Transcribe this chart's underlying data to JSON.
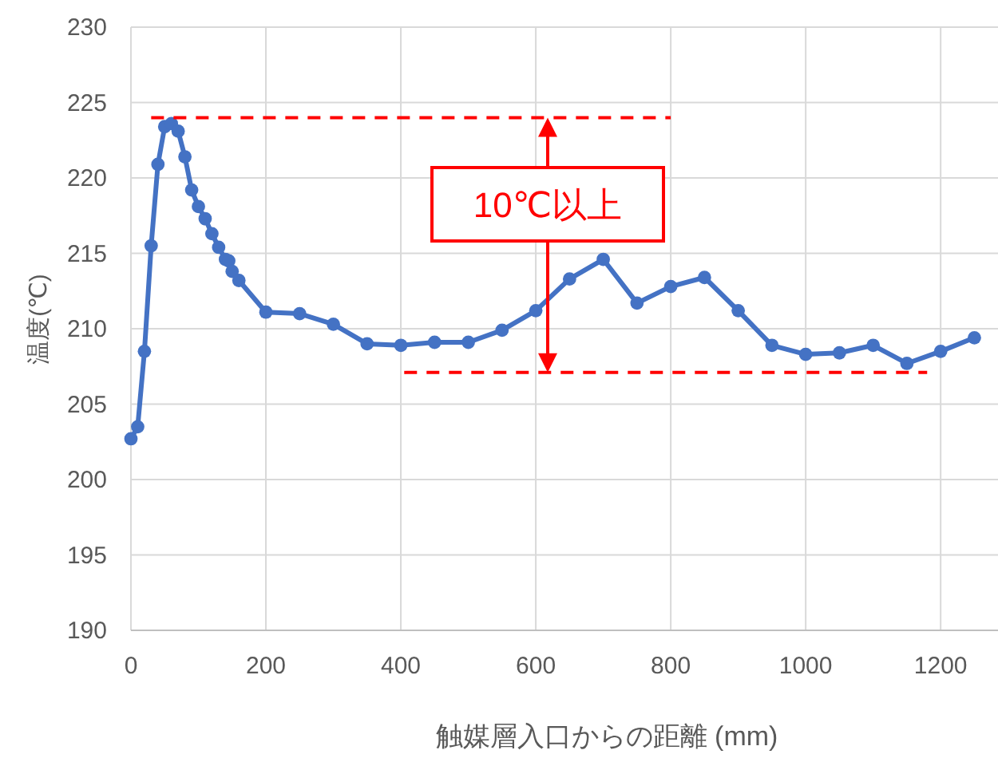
{
  "chart_data": {
    "type": "line",
    "xlabel": "触媒層入口からの距離 (mm)",
    "ylabel": "温度(℃)",
    "xlim": [
      0,
      1285
    ],
    "xticks": [
      0,
      200,
      400,
      600,
      800,
      1000,
      1200
    ],
    "ylim": [
      190,
      230
    ],
    "yticks": [
      190,
      195,
      200,
      205,
      210,
      215,
      220,
      225,
      230
    ],
    "grid": true,
    "series": [
      {
        "color": "#4472c4",
        "marker": "circle",
        "line_style": "solid",
        "x": [
          0,
          10,
          20,
          30,
          40,
          50,
          60,
          70,
          80,
          90,
          100,
          110,
          120,
          130,
          140,
          145,
          150,
          160,
          200,
          250,
          300,
          350,
          400,
          450,
          500,
          550,
          600,
          650,
          700,
          750,
          800,
          850,
          900,
          950,
          1000,
          1050,
          1100,
          1150,
          1200,
          1250
        ],
        "values": [
          202.7,
          203.5,
          208.5,
          215.5,
          220.9,
          223.4,
          223.6,
          223.1,
          221.4,
          219.2,
          218.1,
          217.3,
          216.3,
          215.4,
          214.6,
          214.5,
          213.8,
          213.2,
          211.1,
          211.0,
          210.3,
          209.0,
          208.9,
          209.1,
          209.1,
          209.9,
          211.2,
          213.3,
          214.6,
          211.7,
          212.8,
          213.4,
          211.2,
          208.9,
          208.3,
          208.4,
          208.9,
          207.7,
          208.5,
          209.4
        ]
      },
      {
        "type": "line",
        "color": "#ff0000",
        "marker": "none",
        "line_style": "dashed",
        "x": [
          30,
          800
        ],
        "values": [
          224,
          224
        ]
      },
      {
        "type": "line",
        "color": "#ff0000",
        "marker": "none",
        "line_style": "dashed",
        "x": [
          405,
          1180
        ],
        "values": [
          207.1,
          207.1
        ]
      }
    ],
    "annotations": [
      "10℃以上"
    ]
  }
}
